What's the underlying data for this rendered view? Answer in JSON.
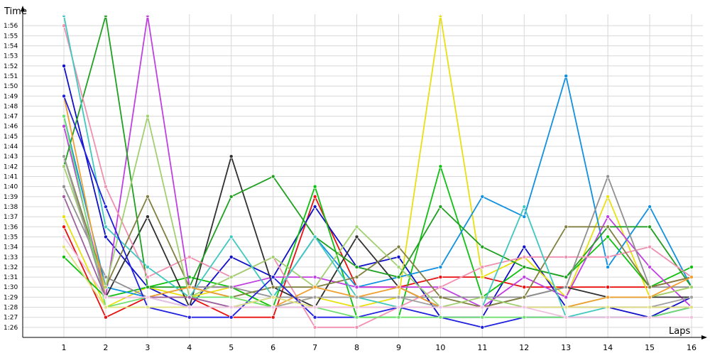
{
  "chart_data": {
    "type": "line",
    "xlabel": "Laps",
    "ylabel": "Time",
    "x": [
      1,
      2,
      3,
      4,
      5,
      6,
      7,
      8,
      9,
      10,
      11,
      12,
      13,
      14,
      15,
      16
    ],
    "ylim": [
      "1:25",
      "1:57"
    ],
    "ytick_labels": [
      "1:26",
      "1:27",
      "1:28",
      "1:29",
      "1:30",
      "1:31",
      "1:32",
      "1:33",
      "1:34",
      "1:35",
      "1:36",
      "1:37",
      "1:38",
      "1:39",
      "1:40",
      "1:41",
      "1:42",
      "1:43",
      "1:44",
      "1:45",
      "1:46",
      "1:47",
      "1:48",
      "1:49",
      "1:50",
      "1:51",
      "1:52",
      "1:53",
      "1:54",
      "1:55",
      "1:56"
    ],
    "grid": true,
    "series": [
      {
        "color": "#e81010",
        "values": [
          "1:36",
          "1:27",
          "1:29",
          "1:29",
          "1:27",
          "1:27",
          "1:39",
          "1:30",
          "1:30",
          "1:31",
          "1:31",
          "1:30",
          "1:30",
          "1:30",
          "1:30",
          "1:31"
        ]
      },
      {
        "color": "#1010c8",
        "values": [
          "1:52",
          "1:35",
          "1:30",
          "1:28",
          "1:33",
          "1:31",
          "1:38",
          "1:32",
          "1:33",
          "1:27",
          "1:27",
          "1:34",
          "1:28",
          "1:28",
          "1:27",
          "1:29"
        ]
      },
      {
        "color": "#e8e010",
        "values": [
          "1:37",
          "1:28",
          "1:30",
          "1:29",
          "1:30",
          "1:28",
          "1:29",
          "1:28",
          "1:29",
          "1:57",
          "1:31",
          "1:33",
          "1:29",
          "1:39",
          "1:29",
          "1:30"
        ]
      },
      {
        "color": "#10c010",
        "values": [
          "1:33",
          "1:29",
          "1:30",
          "1:31",
          "1:30",
          "1:28",
          "1:40",
          "1:27",
          "1:27",
          "1:42",
          "1:29",
          "1:32",
          "1:31",
          "1:35",
          "1:30",
          "1:32"
        ]
      },
      {
        "color": "#1090e0",
        "values": [
          "1:47",
          "1:30",
          "1:29",
          "1:28",
          "1:28",
          "1:29",
          "1:35",
          "1:30",
          "1:31",
          "1:32",
          "1:39",
          "1:37",
          "1:51",
          "1:32",
          "1:38",
          "1:30"
        ]
      },
      {
        "color": "#c040e0",
        "values": [
          "1:46",
          "1:29",
          "1:57",
          "1:30",
          "1:30",
          "1:31",
          "1:31",
          "1:30",
          "1:30",
          "1:30",
          "1:28",
          "1:31",
          "1:29",
          "1:37",
          "1:32",
          "1:28"
        ]
      },
      {
        "color": "#303030",
        "values": [
          "1:43",
          "1:29",
          "1:37",
          "1:28",
          "1:43",
          "1:30",
          "1:28",
          "1:35",
          "1:30",
          "1:28",
          "1:28",
          "1:29",
          "1:30",
          "1:29",
          "1:29",
          "1:29"
        ]
      },
      {
        "color": "#20a020",
        "values": [
          "1:42",
          "1:57",
          "1:30",
          "1:30",
          "1:39",
          "1:41",
          "1:35",
          "1:32",
          "1:31",
          "1:38",
          "1:34",
          "1:32",
          "1:31",
          "1:36",
          "1:36",
          "1:30"
        ]
      },
      {
        "color": "#f090b0",
        "values": [
          "1:56",
          "1:40",
          "1:31",
          "1:33",
          "1:31",
          "1:33",
          "1:26",
          "1:26",
          "1:28",
          "1:30",
          "1:32",
          "1:33",
          "1:33",
          "1:33",
          "1:34",
          "1:31"
        ]
      },
      {
        "color": "#909090",
        "values": [
          "1:40",
          "1:31",
          "1:29",
          "1:30",
          "1:30",
          "1:29",
          "1:29",
          "1:29",
          "1:29",
          "1:29",
          "1:29",
          "1:29",
          "1:30",
          "1:41",
          "1:30",
          "1:30"
        ]
      },
      {
        "color": "#808040",
        "values": [
          "1:43",
          "1:30",
          "1:39",
          "1:30",
          "1:29",
          "1:30",
          "1:30",
          "1:31",
          "1:34",
          "1:29",
          "1:28",
          "1:29",
          "1:36",
          "1:36",
          "1:30",
          "1:31"
        ]
      },
      {
        "color": "#a0d070",
        "values": [
          "1:42",
          "1:30",
          "1:47",
          "1:29",
          "1:31",
          "1:33",
          "1:30",
          "1:36",
          "1:32",
          "1:28",
          "1:29",
          "1:28",
          "1:28",
          "1:29",
          "1:29",
          "1:30"
        ]
      },
      {
        "color": "#40c8c0",
        "values": [
          "1:57",
          "1:36",
          "1:32",
          "1:29",
          "1:35",
          "1:29",
          "1:35",
          "1:29",
          "1:28",
          "1:28",
          "1:28",
          "1:38",
          "1:27",
          "1:28",
          "1:28",
          "1:28"
        ]
      },
      {
        "color": "#f0a030",
        "values": [
          "1:49",
          "1:29",
          "1:29",
          "1:30",
          "1:29",
          "1:28",
          "1:30",
          "1:29",
          "1:30",
          "1:28",
          "1:28",
          "1:28",
          "1:28",
          "1:29",
          "1:29",
          "1:31"
        ]
      },
      {
        "color": "#2020e0",
        "values": [
          "1:49",
          "1:38",
          "1:28",
          "1:27",
          "1:27",
          "1:31",
          "1:27",
          "1:27",
          "1:28",
          "1:27",
          "1:26",
          "1:27",
          "1:27",
          "1:27",
          "1:27",
          "1:28"
        ]
      },
      {
        "color": "#70e070",
        "values": [
          "1:47",
          "1:28",
          "1:29",
          "1:29",
          "1:29",
          "1:28",
          "1:28",
          "1:27",
          "1:27",
          "1:27",
          "1:27",
          "1:27",
          "1:27",
          "1:27",
          "1:27",
          "1:28"
        ]
      },
      {
        "color": "#a0a0a0",
        "values": [
          "1:43",
          "1:29",
          "1:29",
          "1:29",
          "1:28",
          "1:28",
          "1:29",
          "1:29",
          "1:29",
          "1:28",
          "1:28",
          "1:28",
          "1:28",
          "1:28",
          "1:28",
          "1:29"
        ]
      },
      {
        "color": "#a060a0",
        "values": [
          "1:39",
          "1:29",
          "1:29",
          "1:29",
          "1:28",
          "1:28",
          "1:28",
          "1:28",
          "1:28",
          "1:28",
          "1:28",
          "1:28",
          "1:28",
          "1:28",
          "1:28",
          "1:28"
        ]
      },
      {
        "color": "#e0e080",
        "values": [
          "1:34",
          "1:28",
          "1:28",
          "1:28",
          "1:28",
          "1:29",
          "1:28",
          "1:28",
          "1:28",
          "1:28",
          "1:28",
          "1:28",
          "1:28",
          "1:28",
          "1:28",
          "1:28"
        ]
      },
      {
        "color": "#f0c0e0",
        "values": [
          "1:35",
          "1:29",
          "1:29",
          "1:28",
          "1:28",
          "1:28",
          "1:28",
          "1:28",
          "1:28",
          "1:28",
          "1:28",
          "1:28",
          "1:27",
          "1:27",
          "1:27",
          "1:27"
        ]
      }
    ]
  }
}
